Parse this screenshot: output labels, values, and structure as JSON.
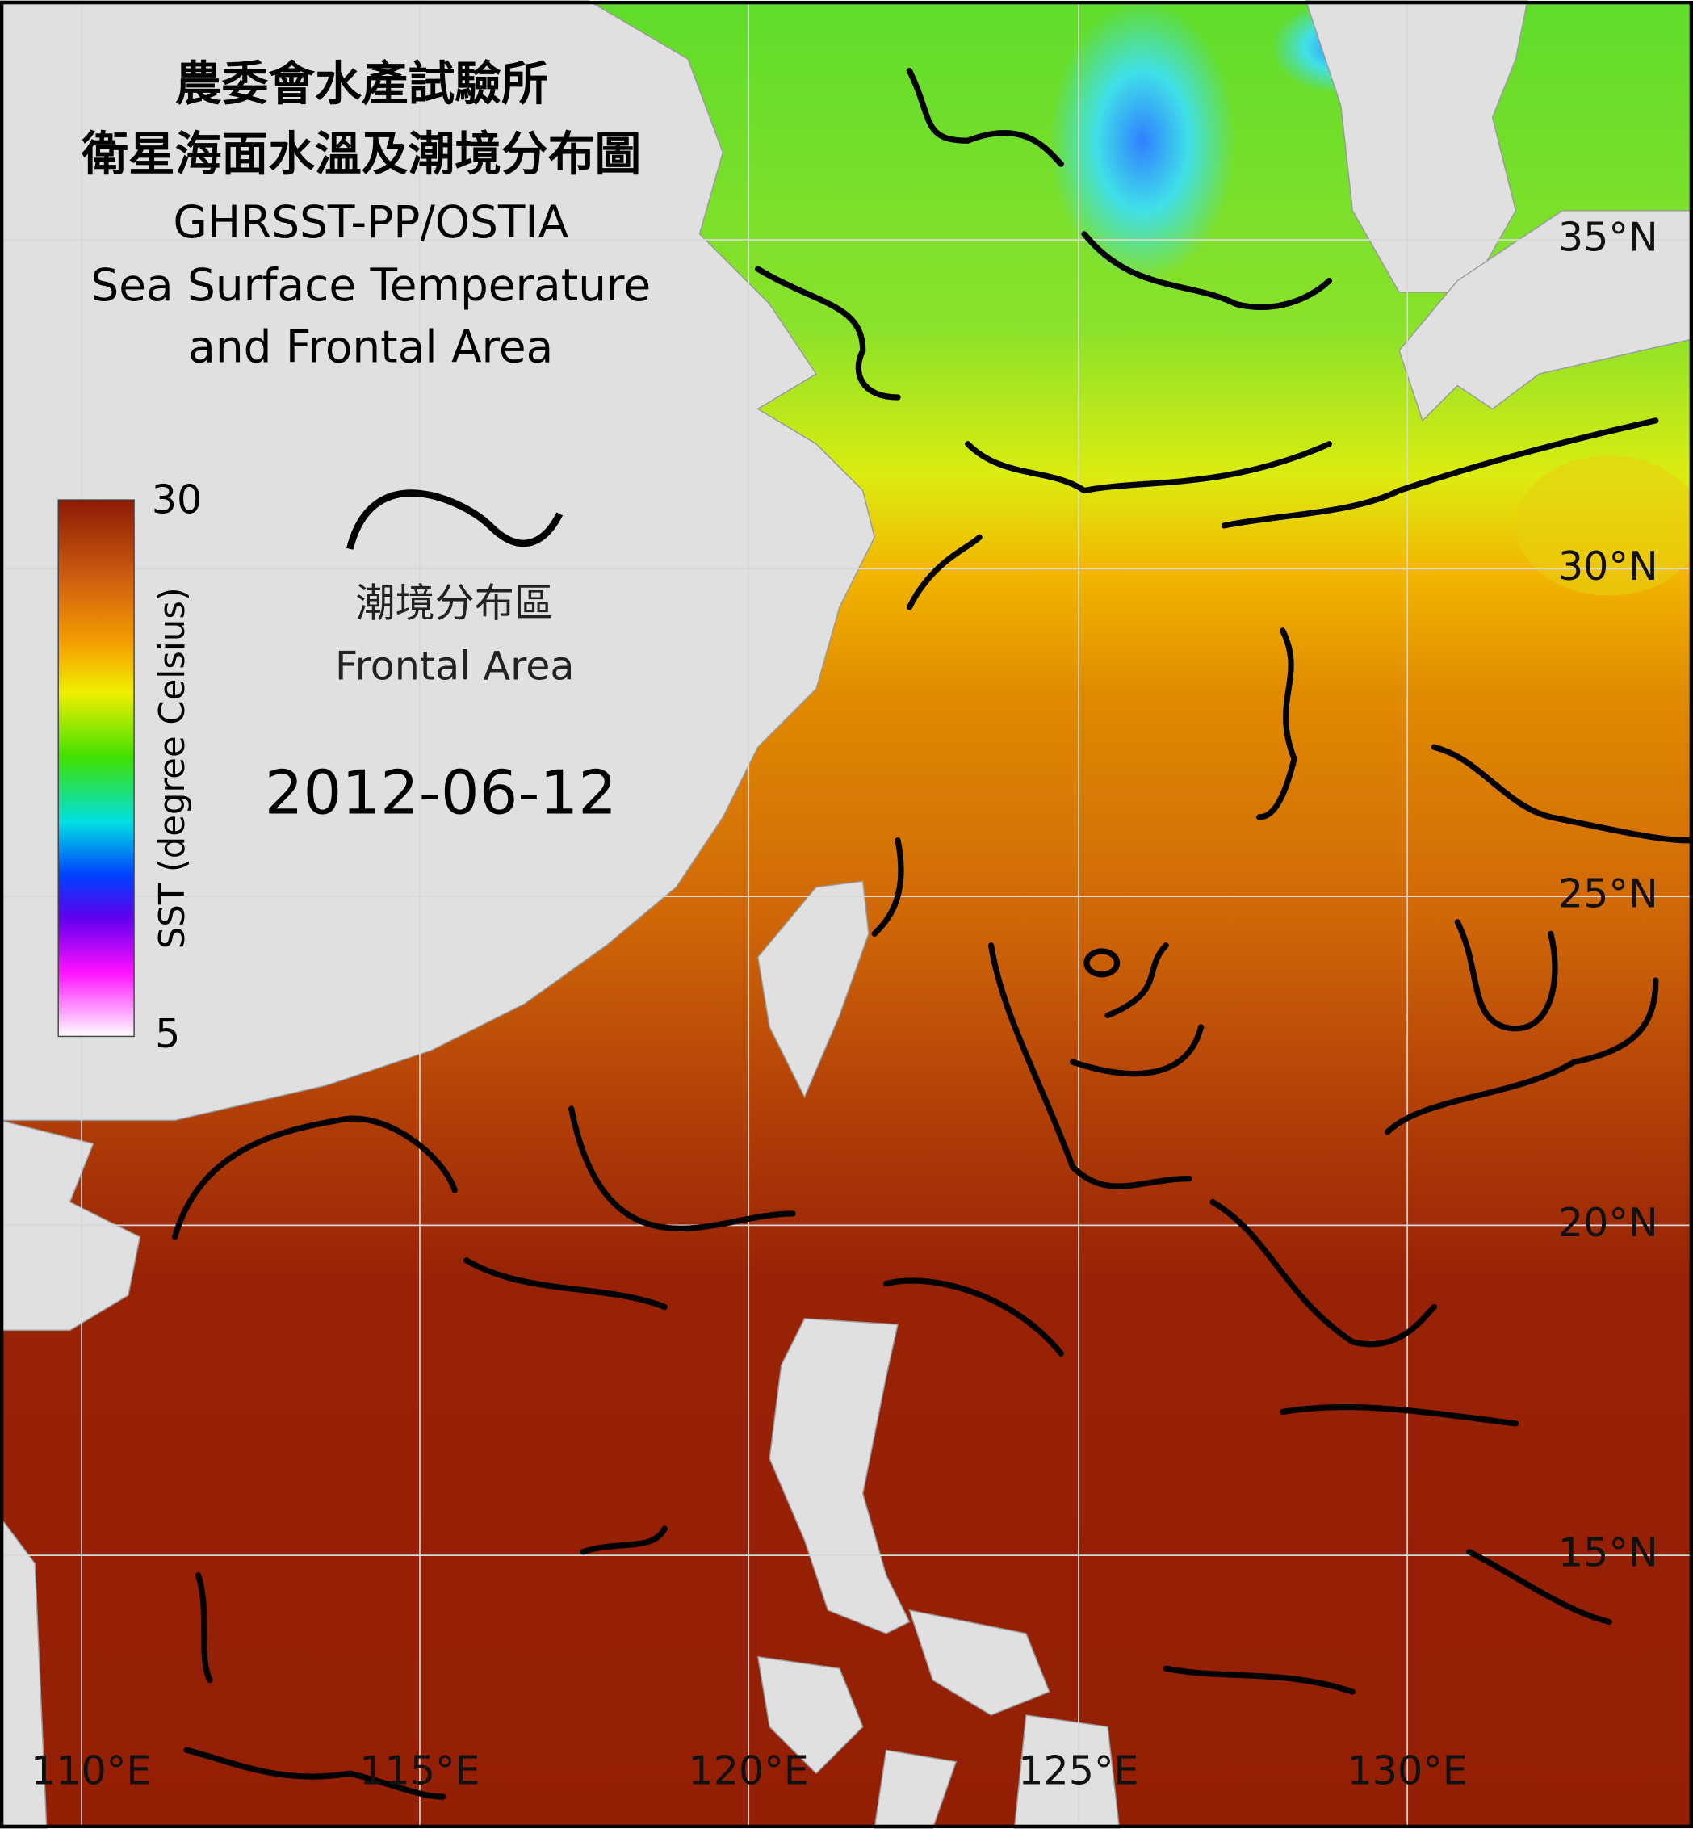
{
  "header": {
    "title_zh_1": "農委會水產試驗所",
    "title_zh_2": "衛星海面水溫及潮境分布圖",
    "product": "GHRSST-PP/OSTIA",
    "title_en_1": "Sea Surface Temperature",
    "title_en_2": "and Frontal Area"
  },
  "colorbar": {
    "label": "SST (degree Celsius)",
    "max": 30,
    "min": 5
  },
  "legend": {
    "label_zh": "潮境分布區",
    "label_en": "Frontal Area"
  },
  "date": "2012-06-12",
  "latitude_labels": [
    "35°N",
    "30°N",
    "25°N",
    "20°N",
    "15°N"
  ],
  "longitude_labels": [
    "110°E",
    "115°E",
    "120°E",
    "125°E",
    "130°E"
  ]
}
